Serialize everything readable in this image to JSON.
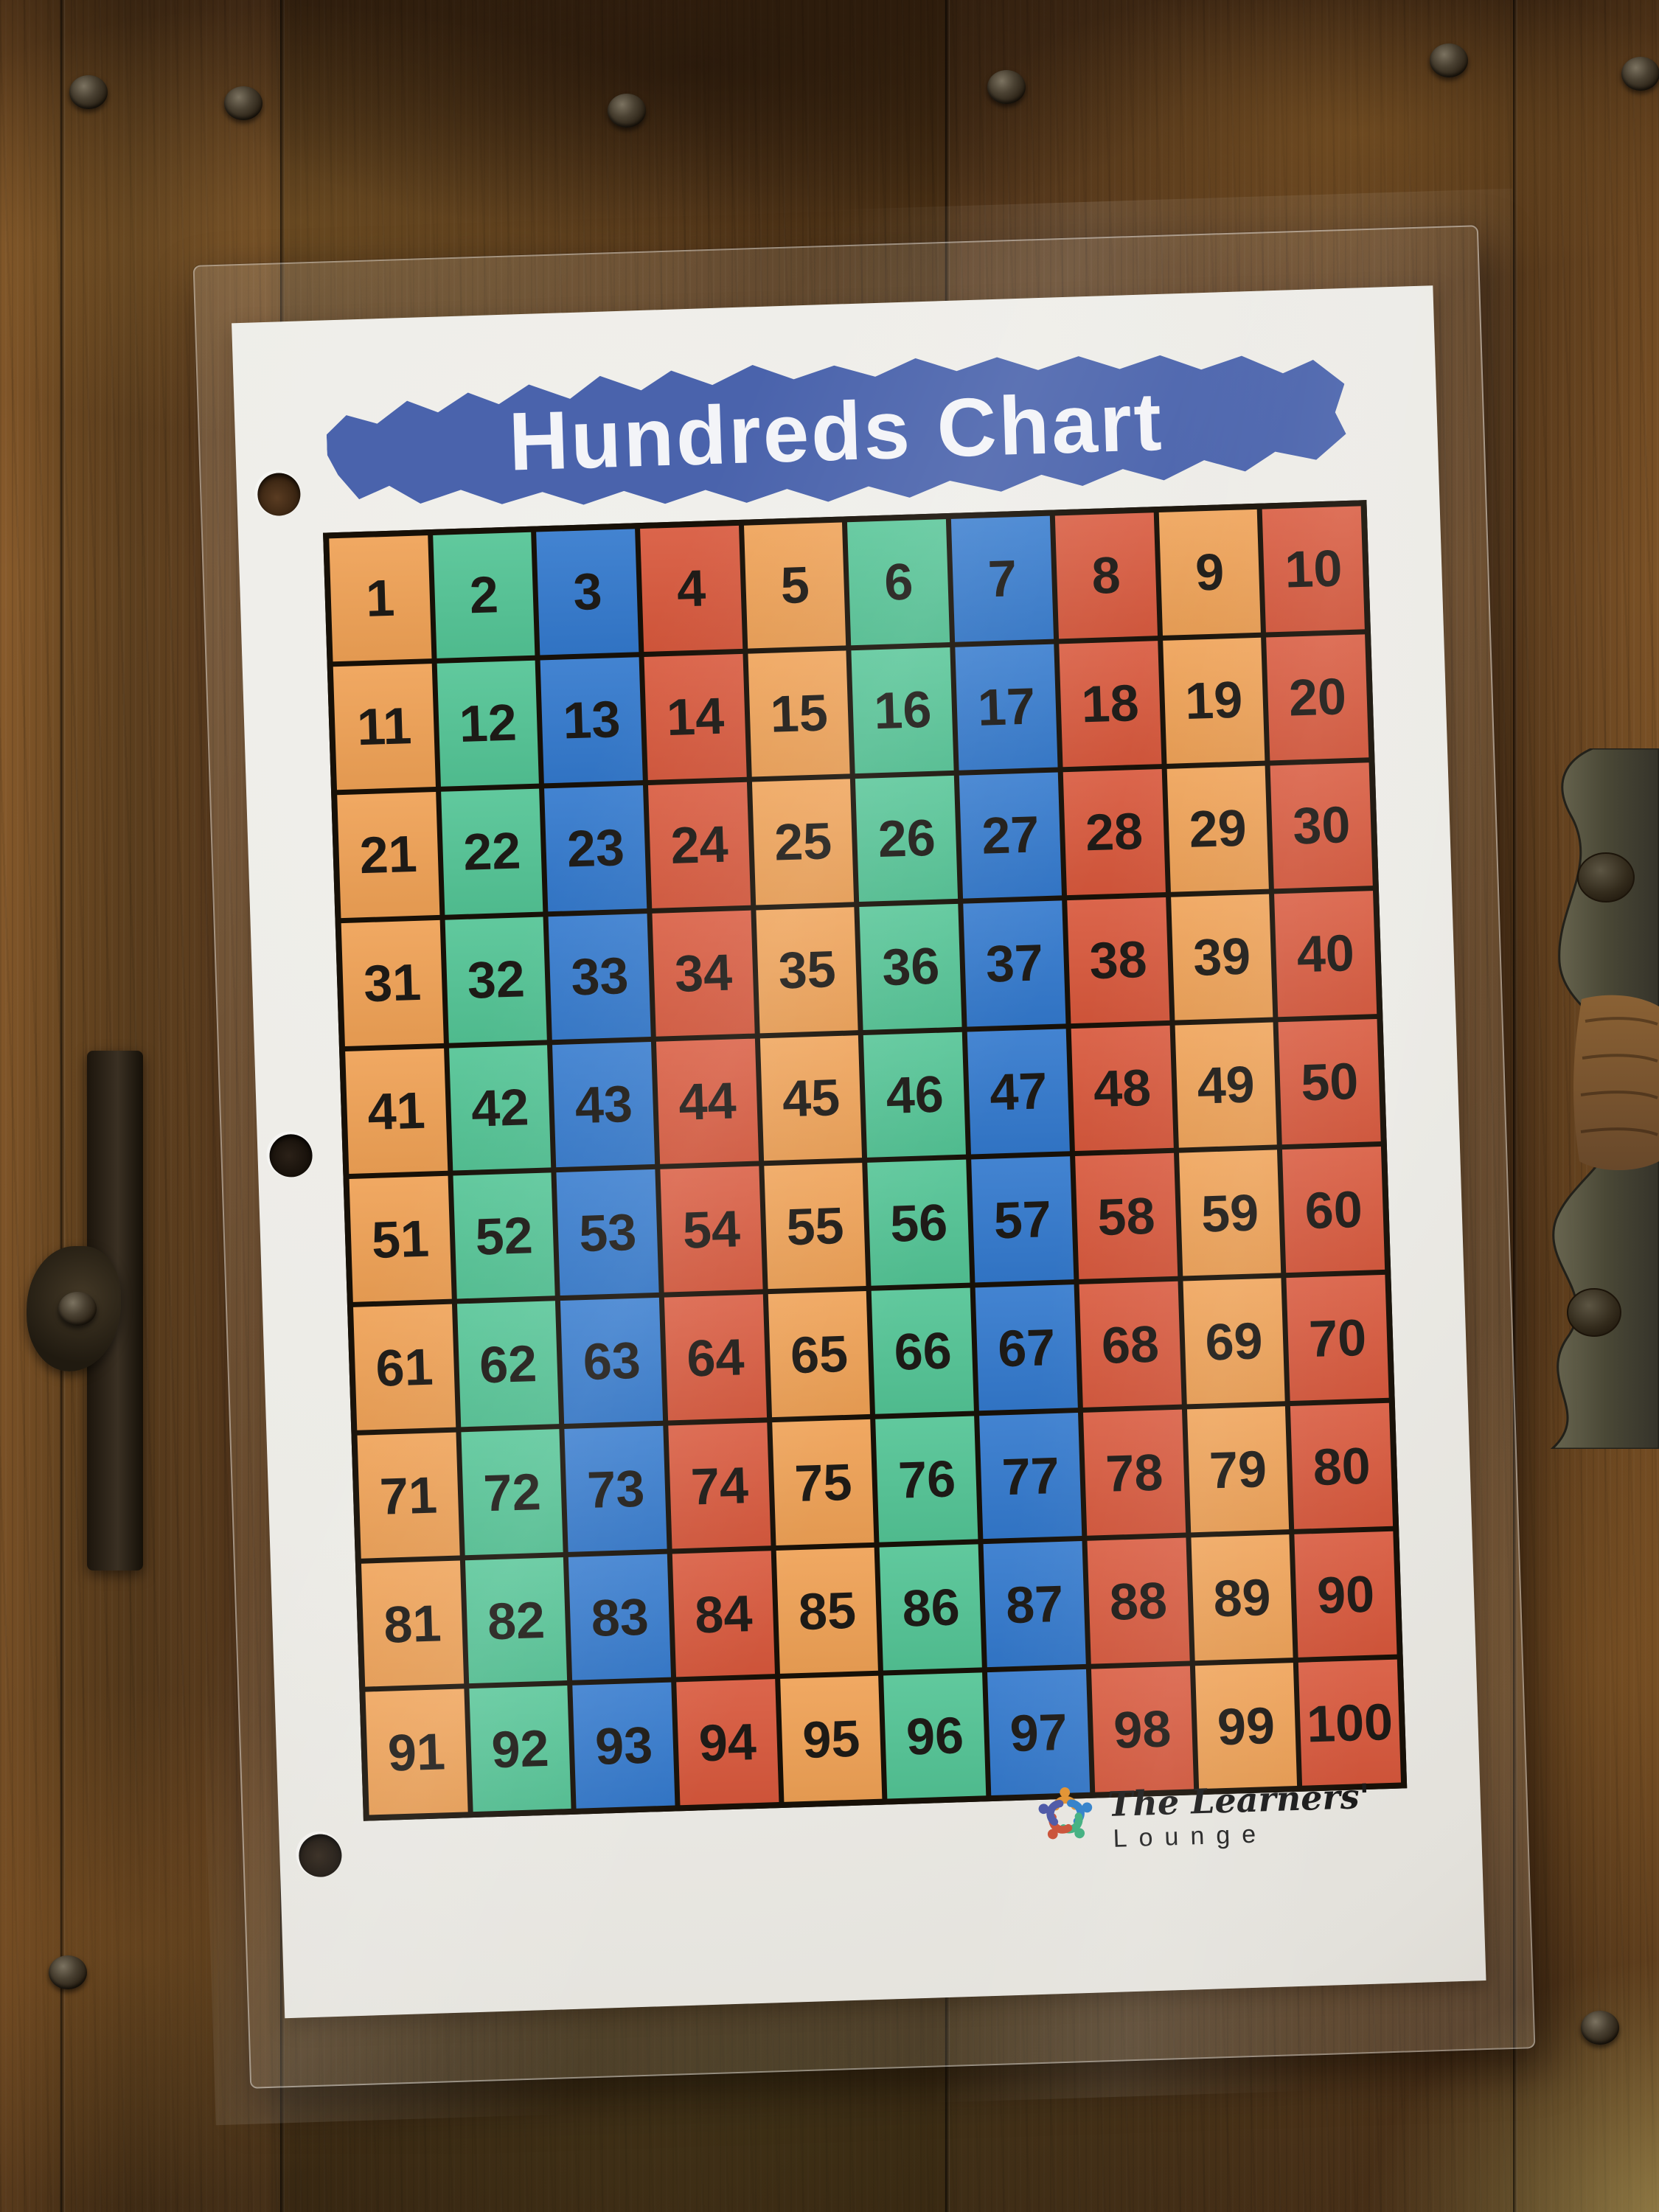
{
  "page": {
    "title": "Hundreds Chart",
    "logo": {
      "icon": "learners-lounge-logo",
      "line1": "The Learners'",
      "line2": "Lounge"
    }
  },
  "palette": {
    "banner_blue": "#4a63ac",
    "paper": "#ecebe6",
    "grid_line": "#171007",
    "number_color": "#1d1a16",
    "title_text": "#f3f4f8",
    "orange": "#efa155",
    "green": "#53c495",
    "blue": "#3379cd",
    "red": "#d8583c"
  },
  "chart_data": {
    "type": "table",
    "title": "Hundreds Chart",
    "rows": 10,
    "cols": 10,
    "numbers": [
      1,
      2,
      3,
      4,
      5,
      6,
      7,
      8,
      9,
      10,
      11,
      12,
      13,
      14,
      15,
      16,
      17,
      18,
      19,
      20,
      21,
      22,
      23,
      24,
      25,
      26,
      27,
      28,
      29,
      30,
      31,
      32,
      33,
      34,
      35,
      36,
      37,
      38,
      39,
      40,
      41,
      42,
      43,
      44,
      45,
      46,
      47,
      48,
      49,
      50,
      51,
      52,
      53,
      54,
      55,
      56,
      57,
      58,
      59,
      60,
      61,
      62,
      63,
      64,
      65,
      66,
      67,
      68,
      69,
      70,
      71,
      72,
      73,
      74,
      75,
      76,
      77,
      78,
      79,
      80,
      81,
      82,
      83,
      84,
      85,
      86,
      87,
      88,
      89,
      90,
      91,
      92,
      93,
      94,
      95,
      96,
      97,
      98,
      99,
      100
    ],
    "column_colors": [
      "orange",
      "green",
      "blue",
      "red",
      "orange",
      "green",
      "blue",
      "red",
      "orange",
      "red"
    ],
    "legend_position": "none",
    "grid_on": true
  },
  "logo_icon_colors": [
    "#e2912f",
    "#2f7fc9",
    "#3fae7e",
    "#c94f35",
    "#4b56a5"
  ]
}
